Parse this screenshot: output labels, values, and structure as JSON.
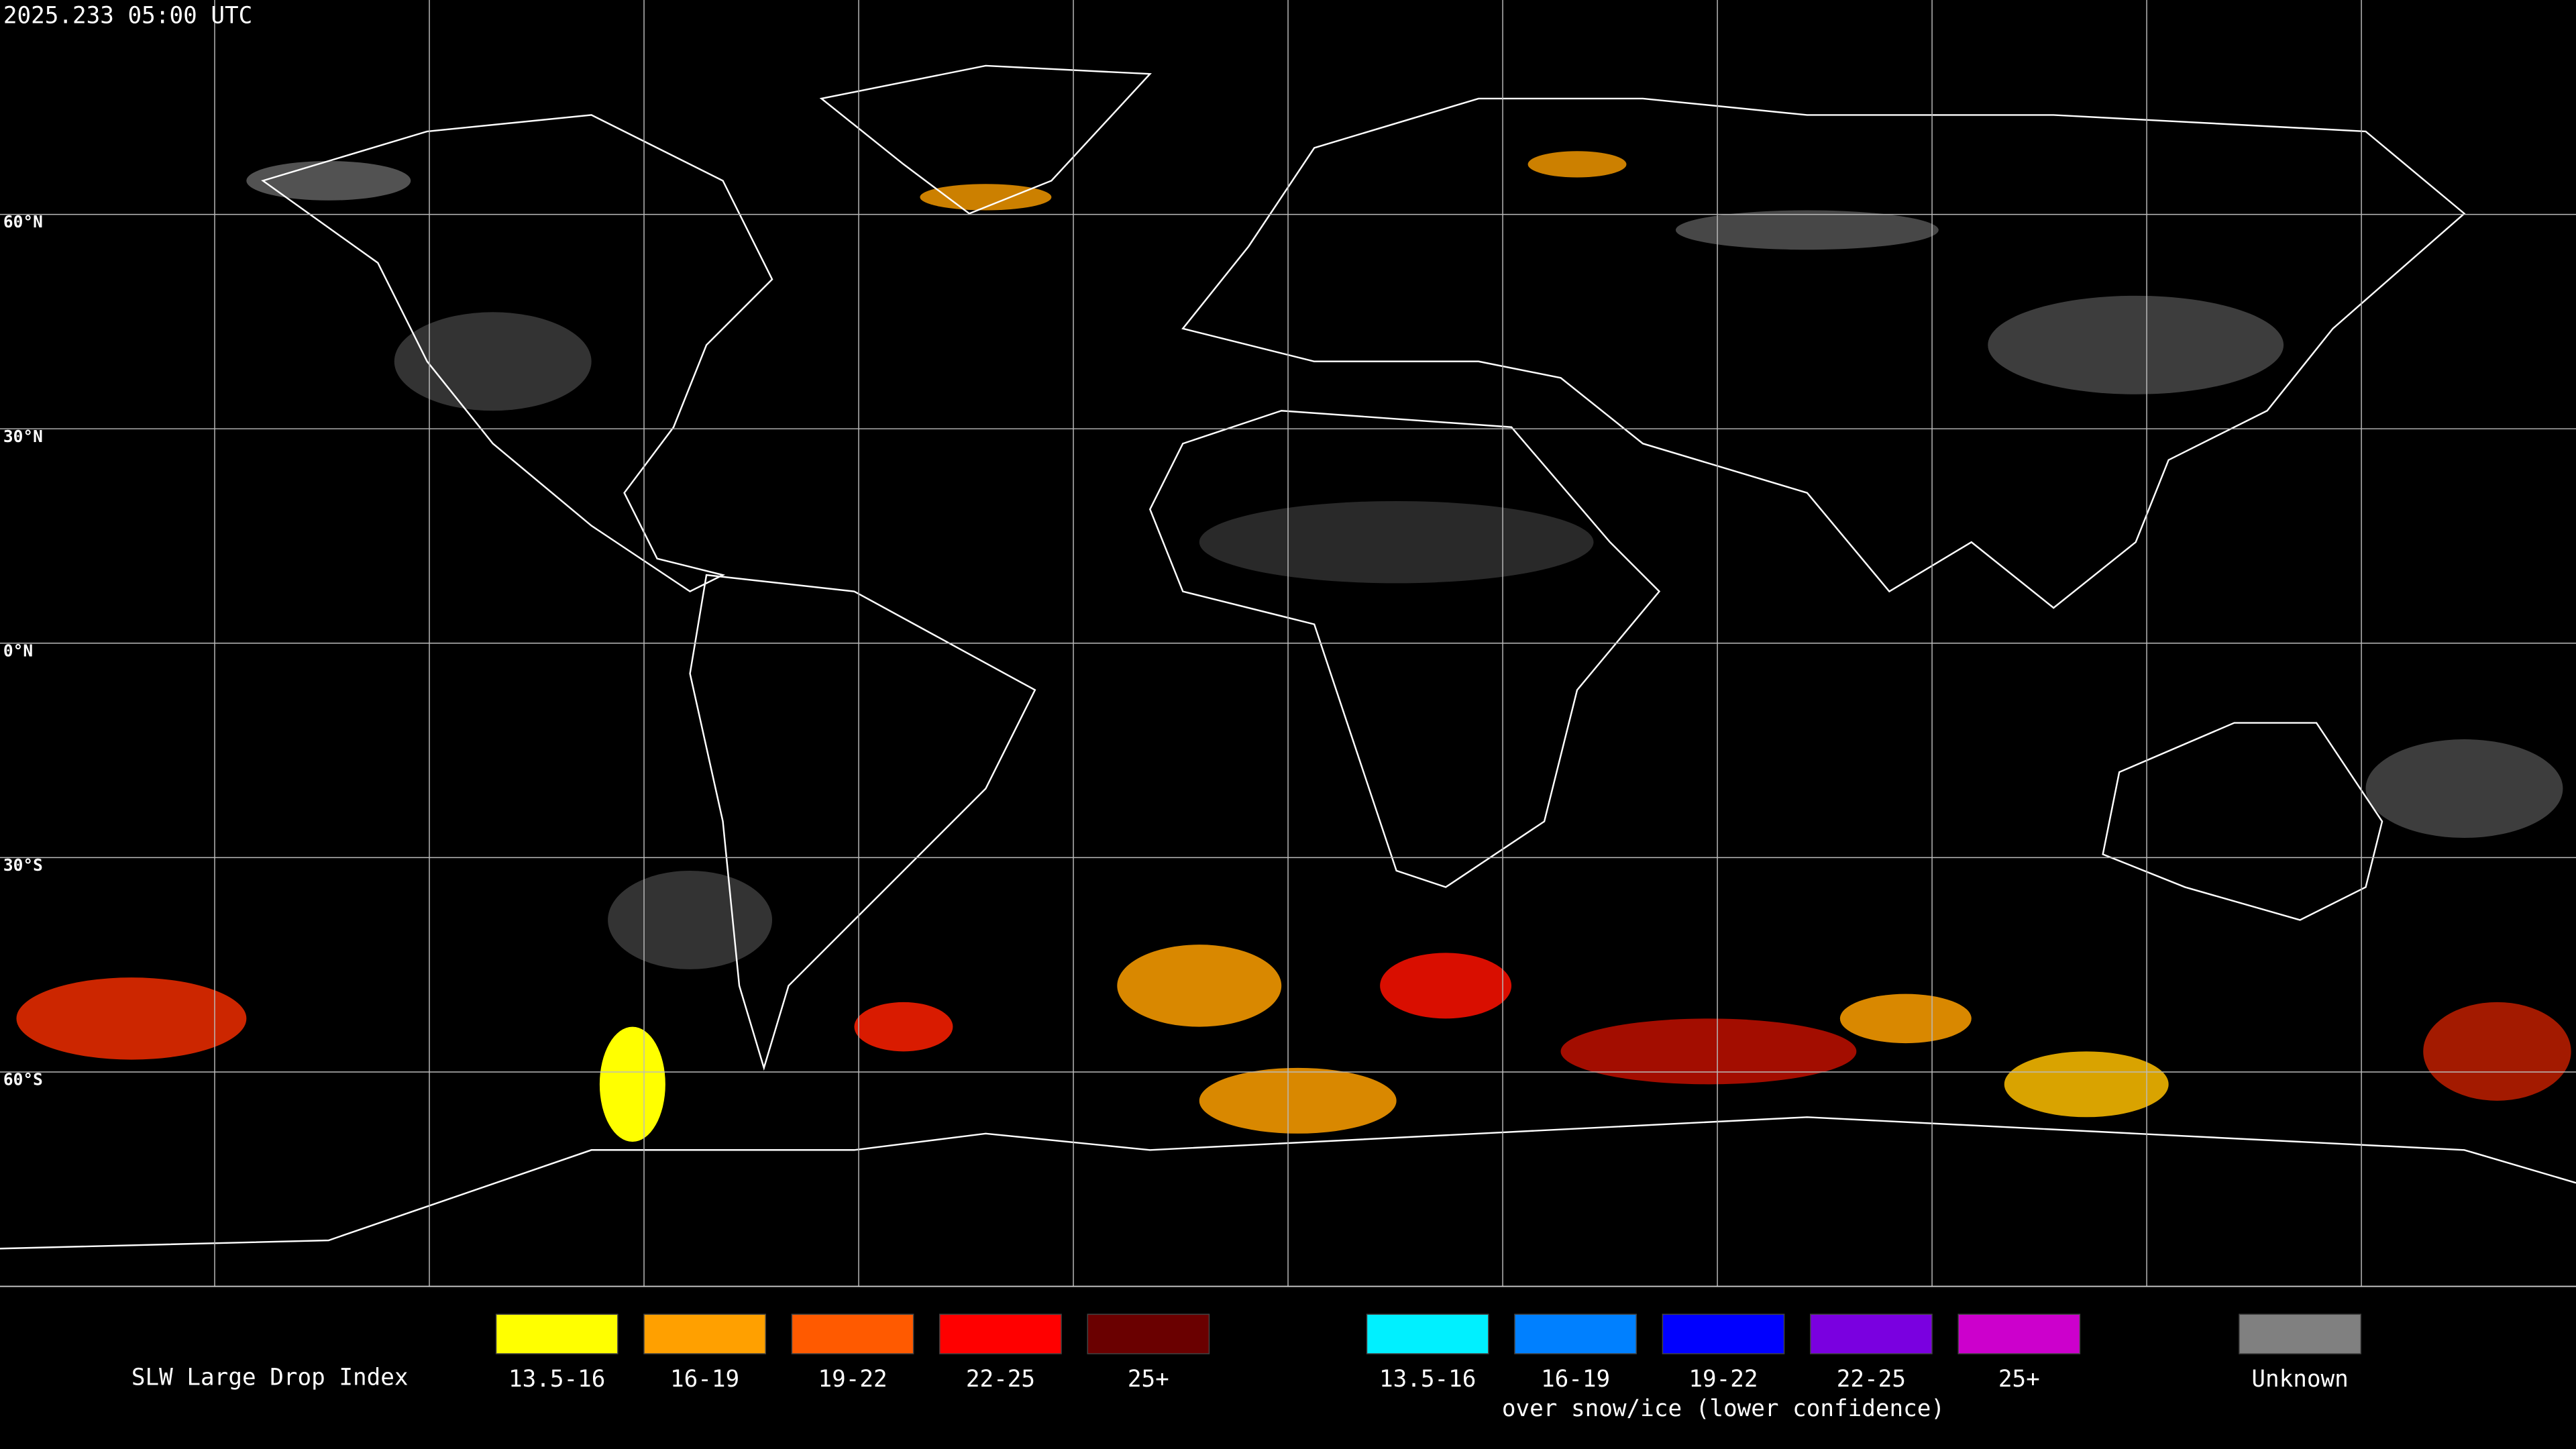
{
  "timestamp": "2025.233 05:00 UTC",
  "latitude_labels": [
    "60°N",
    "30°N",
    "0°N",
    "30°S",
    "60°S"
  ],
  "legend": {
    "title": "SLW Large Drop Index",
    "liquid": [
      {
        "label": "13.5-16",
        "color": "#ffff00"
      },
      {
        "label": "16-19",
        "color": "#ffa000"
      },
      {
        "label": "19-22",
        "color": "#ff5a00"
      },
      {
        "label": "22-25",
        "color": "#ff0000"
      },
      {
        "label": "25+",
        "color": "#6a0000"
      }
    ],
    "snow_ice": [
      {
        "label": "13.5-16",
        "color": "#00f0ff"
      },
      {
        "label": "16-19",
        "color": "#0080ff"
      },
      {
        "label": "19-22",
        "color": "#0000ff"
      },
      {
        "label": "22-25",
        "color": "#7a00e0"
      },
      {
        "label": "25+",
        "color": "#cc00cc"
      }
    ],
    "snow_ice_note": "over snow/ice (lower confidence)",
    "unknown": {
      "label": "Unknown",
      "color": "#808080"
    }
  }
}
